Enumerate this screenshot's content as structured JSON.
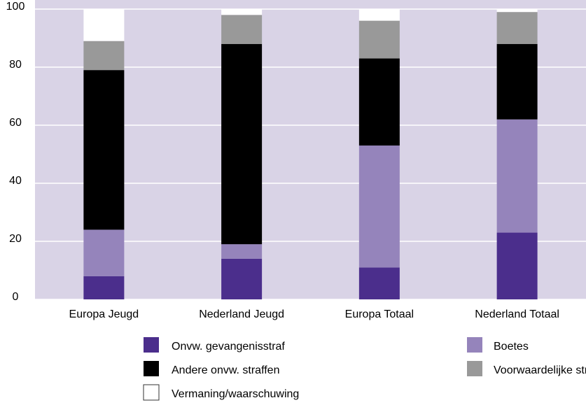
{
  "chart_data": {
    "type": "stacked_bar",
    "categories": [
      "Europa Jeugd",
      "Nederland Jeugd",
      "Europa Totaal",
      "Nederland Totaal"
    ],
    "series": [
      {
        "name": "Onvw. gevangenisstraf",
        "color": "#4b2e8c",
        "values": [
          8,
          14,
          11,
          23
        ]
      },
      {
        "name": "Boetes",
        "color": "#9584bb",
        "values": [
          16,
          5,
          42,
          39
        ]
      },
      {
        "name": "Andere onvw. straffen",
        "color": "#000000",
        "values": [
          55,
          69,
          30,
          26
        ]
      },
      {
        "name": "Voorwaardelijke straf",
        "color": "#999999",
        "values": [
          10,
          10,
          13,
          11
        ]
      },
      {
        "name": "Vermaning/waarschuwing",
        "color": "#ffffff",
        "values": [
          11,
          2,
          4,
          1
        ]
      }
    ],
    "ylim": [
      0,
      100
    ],
    "yticks": [
      0,
      20,
      40,
      60,
      80,
      100
    ],
    "grid": true
  }
}
